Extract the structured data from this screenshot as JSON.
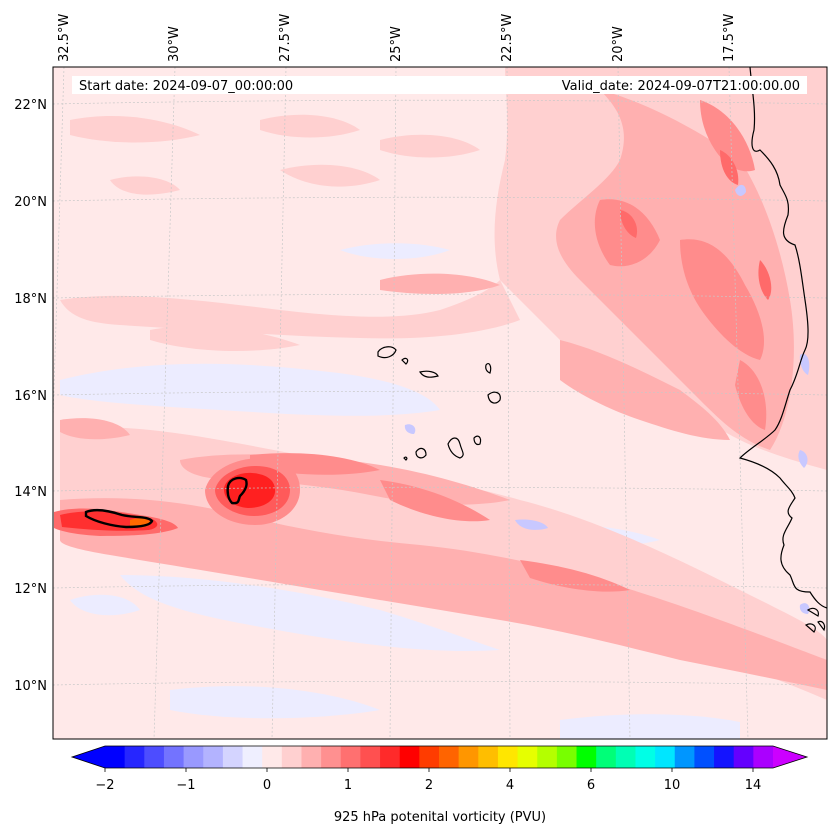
{
  "map": {
    "start_date_label": "Start date: 2024-09-07_00:00:00",
    "valid_date_label": "Valid_date: 2024-09-07T21:00:00.00",
    "lon_labels": [
      "32.5°W",
      "30°W",
      "27.5°W",
      "25°W",
      "22.5°W",
      "20°W",
      "17.5°W"
    ],
    "lat_labels": [
      "22°N",
      "20°N",
      "18°N",
      "16°N",
      "14°N",
      "12°N",
      "10°N"
    ],
    "colors": {
      "background": "#ffe9e9",
      "light_pink": "#ffd0d0",
      "pink": "#ffb0b0",
      "salmon": "#ff8c8c",
      "red_light": "#ff6a6a",
      "red": "#ff3030",
      "red_strong": "#ff0000",
      "orange": "#ff6a00",
      "blue_faint": "#ececff",
      "blue_light": "#c8c8ff",
      "coast": "#000000",
      "grid": "#c8c8c8"
    }
  },
  "colorbar": {
    "label": "925 hPa potenital vorticity (PVU)",
    "tick_labels": [
      "−2",
      "−1",
      "0",
      "1",
      "2",
      "4",
      "6",
      "10",
      "14"
    ],
    "colors": [
      "#0000ff",
      "#2626ff",
      "#4d4dff",
      "#7373ff",
      "#9999ff",
      "#b3b3ff",
      "#d4d4ff",
      "#efefff",
      "#ffe9e9",
      "#ffd0d0",
      "#ffb0b0",
      "#ff9090",
      "#ff7070",
      "#ff5050",
      "#ff2a2a",
      "#ff0000",
      "#ff3c00",
      "#ff6400",
      "#ff9600",
      "#ffbe00",
      "#ffe600",
      "#e6ff00",
      "#b4ff00",
      "#78ff00",
      "#00ff00",
      "#00ff78",
      "#00ffb4",
      "#00ffe6",
      "#00e6ff",
      "#0096ff",
      "#0050ff",
      "#1414ff",
      "#6400ff",
      "#aa00ff"
    ],
    "extend_low_color": "#0000ff",
    "extend_high_color": "#cc00ff"
  }
}
